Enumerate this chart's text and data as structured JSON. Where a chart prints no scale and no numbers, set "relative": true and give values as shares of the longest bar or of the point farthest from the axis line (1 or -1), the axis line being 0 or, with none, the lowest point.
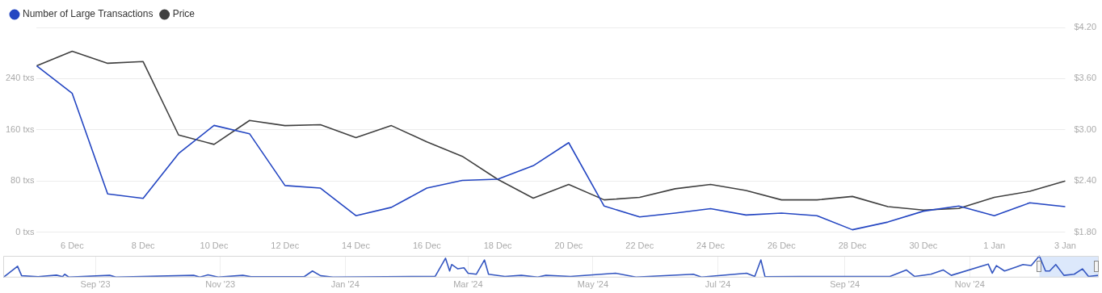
{
  "chart_data": [
    {
      "type": "line",
      "categories": [
        null,
        "6 Dec",
        null,
        "8 Dec",
        null,
        "10 Dec",
        null,
        "12 Dec",
        null,
        "14 Dec",
        null,
        "16 Dec",
        null,
        "18 Dec",
        null,
        "20 Dec",
        null,
        "22 Dec",
        null,
        "24 Dec",
        null,
        "26 Dec",
        null,
        "28 Dec",
        null,
        "30 Dec",
        null,
        "1 Jan",
        null,
        "3 Jan"
      ],
      "series": [
        {
          "name": "Number of Large Transactions",
          "color": "#2446c2",
          "axis": "y",
          "values": [
            260,
            217,
            60,
            53,
            123,
            167,
            154,
            73,
            69,
            26,
            39,
            69,
            81,
            83,
            104,
            140,
            41,
            24,
            30,
            37,
            27,
            30,
            26,
            4,
            16,
            33,
            41,
            26,
            46,
            40
          ]
        },
        {
          "name": "Price",
          "color": "#404040",
          "axis": "y2",
          "values": [
            3.75,
            3.92,
            3.78,
            3.8,
            2.94,
            2.83,
            3.11,
            3.05,
            3.06,
            2.91,
            3.05,
            2.86,
            2.69,
            2.42,
            2.2,
            2.36,
            2.18,
            2.21,
            2.31,
            2.36,
            2.29,
            2.18,
            2.18,
            2.22,
            2.1,
            2.06,
            2.08,
            2.21,
            2.28,
            2.4
          ]
        }
      ],
      "ylim": [
        0,
        320
      ],
      "yticks": [
        {
          "value": 0,
          "label": "0 txs"
        },
        {
          "value": 80,
          "label": "80 txs"
        },
        {
          "value": 160,
          "label": "160 txs"
        },
        {
          "value": 240,
          "label": "240 txs"
        },
        {
          "value": 320,
          "label": null
        }
      ],
      "y2lim": [
        1.8,
        4.2
      ],
      "y2ticks": [
        {
          "value": 1.8,
          "label": "$1.80"
        },
        {
          "value": 2.4,
          "label": "$2.40"
        },
        {
          "value": 3.0,
          "label": "$3.00"
        },
        {
          "value": 3.6,
          "label": "$3.60"
        },
        {
          "value": 4.2,
          "label": "$4.20"
        }
      ],
      "grid": "y",
      "legend": "top left",
      "marker": "none",
      "line_style": "solid"
    },
    {
      "type": "line",
      "relative": true,
      "grid": "x",
      "legend": false,
      "marker": "none",
      "tick_labels": "x",
      "xlim": [
        "2023-07-18",
        "2025-01-03"
      ],
      "xticks": [
        {
          "value": "2023-09-01",
          "label": "Sep '23"
        },
        {
          "value": "2023-11-01",
          "label": "Nov '23"
        },
        {
          "value": "2024-01-01",
          "label": "Jan '24"
        },
        {
          "value": "2024-03-01",
          "label": "Mar '24"
        },
        {
          "value": "2024-05-01",
          "label": "May '24"
        },
        {
          "value": "2024-07-01",
          "label": "Jul '24"
        },
        {
          "value": "2024-09-01",
          "label": "Sep '24"
        },
        {
          "value": "2024-11-01",
          "label": "Nov '24"
        }
      ],
      "bands": [
        {
          "axis": "x",
          "from": "2024-12-05",
          "to": "2025-01-03",
          "color": "#dce8fb"
        }
      ],
      "series": [
        {
          "color": "#3355c0",
          "x": [
            "2023-07-18",
            "2023-07-25",
            "2023-07-27",
            "2023-08-04",
            "2023-08-13",
            "2023-08-16",
            "2023-08-17",
            "2023-08-19",
            "2023-09-08",
            "2023-09-11",
            "2023-10-19",
            "2023-10-22",
            "2023-10-26",
            "2023-10-31",
            "2023-11-12",
            "2023-11-16",
            "2023-12-12",
            "2023-12-16",
            "2023-12-20",
            "2023-12-26",
            "2024-02-14",
            "2024-02-19",
            "2024-02-21",
            "2024-02-22",
            "2024-02-25",
            "2024-02-28",
            "2024-03-01",
            "2024-03-05",
            "2024-03-09",
            "2024-03-11",
            "2024-03-19",
            "2024-03-27",
            "2024-04-04",
            "2024-04-08",
            "2024-04-20",
            "2024-05-12",
            "2024-05-22",
            "2024-06-19",
            "2024-06-23",
            "2024-07-15",
            "2024-07-19",
            "2024-07-22",
            "2024-07-24",
            "2024-08-10",
            "2024-09-23",
            "2024-10-01",
            "2024-10-05",
            "2024-10-13",
            "2024-10-19",
            "2024-10-23",
            "2024-11-10",
            "2024-11-12",
            "2024-11-14",
            "2024-11-18",
            "2024-11-24",
            "2024-11-27",
            "2024-12-01",
            "2024-12-05",
            "2024-12-08",
            "2024-12-10",
            "2024-12-13",
            "2024-12-17",
            "2024-12-22",
            "2024-12-26",
            "2024-12-29",
            "2025-01-03"
          ],
          "values": [
            0,
            0.52,
            0.08,
            0.04,
            0.11,
            0.04,
            0.15,
            0.02,
            0.1,
            0.02,
            0.1,
            0.02,
            0.12,
            0.02,
            0.1,
            0.04,
            0.04,
            0.3,
            0.08,
            0.02,
            0.06,
            0.89,
            0.3,
            0.6,
            0.4,
            0.45,
            0.2,
            0.15,
            0.81,
            0.15,
            0.05,
            0.1,
            0.02,
            0.1,
            0.05,
            0.2,
            0.02,
            0.15,
            0.02,
            0.2,
            0.05,
            0.81,
            0.04,
            0.05,
            0.05,
            0.35,
            0.05,
            0.15,
            0.35,
            0.1,
            0.62,
            0.2,
            0.55,
            0.3,
            0.5,
            0.6,
            0.55,
            1,
            0.3,
            0.3,
            0.6,
            0.1,
            0.15,
            0.4,
            0.05,
            0.1
          ]
        }
      ]
    }
  ]
}
